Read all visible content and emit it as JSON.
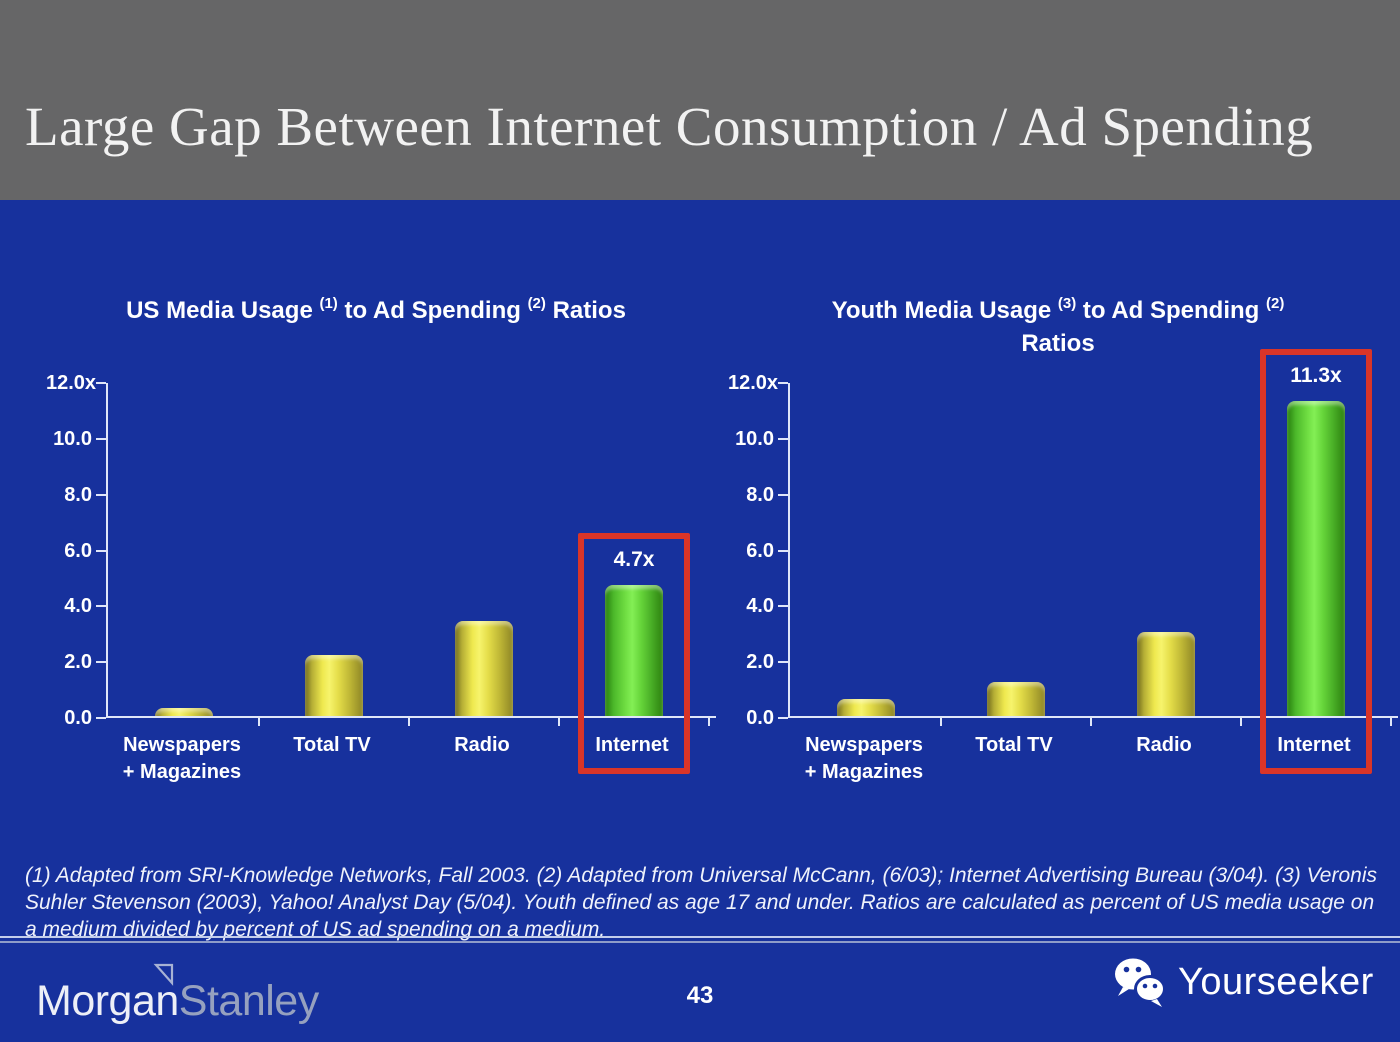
{
  "slide": {
    "header": {
      "title": "Large Gap Between Internet Consumption / Ad Spending"
    },
    "footnote": "(1) Adapted from SRI-Knowledge Networks, Fall 2003.  (2) Adapted from Universal McCann, (6/03); Internet Advertising Bureau (3/04). (3) Veronis Suhler Stevenson (2003), Yahoo! Analyst Day (5/04).  Youth defined as age 17 and under.  Ratios are calculated as percent of US media usage on a medium divided by percent of US ad spending on a medium.",
    "footer": {
      "brand_morgan": "Morgan",
      "brand_stanley": "Stanley",
      "page_number": "43",
      "watermark": "Yourseeker"
    }
  },
  "chart_data": [
    {
      "type": "bar",
      "title": "US Media Usage (1) to Ad Spending (2) Ratios",
      "title_lines": [
        [
          {
            "text": "US Media Usage "
          },
          {
            "sup": "(1)"
          },
          {
            "text": " to Ad Spending "
          },
          {
            "sup": "(2)"
          },
          {
            "text": " Ratios"
          }
        ]
      ],
      "categories": [
        "Newspapers + Magazines",
        "Total TV",
        "Radio",
        "Internet"
      ],
      "category_lines": [
        [
          "Newspapers",
          "+ Magazines"
        ],
        [
          "Total TV"
        ],
        [
          "Radio"
        ],
        [
          "Internet"
        ]
      ],
      "values": [
        0.3,
        2.2,
        3.4,
        4.7
      ],
      "bar_colors": [
        "yellow",
        "yellow",
        "yellow",
        "green"
      ],
      "highlight_index": 3,
      "highlight_label": "4.7x",
      "yticks": [
        {
          "label": "12.0x",
          "value": 12
        },
        {
          "label": "10.0",
          "value": 10
        },
        {
          "label": "8.0",
          "value": 8
        },
        {
          "label": "6.0",
          "value": 6
        },
        {
          "label": "4.0",
          "value": 4
        },
        {
          "label": "2.0",
          "value": 2
        },
        {
          "label": "0.0",
          "value": 0
        }
      ],
      "ylim": [
        0,
        12
      ],
      "grid": false,
      "legend": false
    },
    {
      "type": "bar",
      "title": "Youth Media Usage (3) to Ad Spending (2) Ratios",
      "title_lines": [
        [
          {
            "text": "Youth Media Usage "
          },
          {
            "sup": "(3)"
          },
          {
            "text": " to Ad Spending "
          },
          {
            "sup": "(2)"
          }
        ],
        [
          {
            "text": "Ratios"
          }
        ]
      ],
      "categories": [
        "Newspapers + Magazines",
        "Total TV",
        "Radio",
        "Internet"
      ],
      "category_lines": [
        [
          "Newspapers",
          "+ Magazines"
        ],
        [
          "Total TV"
        ],
        [
          "Radio"
        ],
        [
          "Internet"
        ]
      ],
      "values": [
        0.6,
        1.2,
        3.0,
        11.3
      ],
      "bar_colors": [
        "yellow",
        "yellow",
        "yellow",
        "green"
      ],
      "highlight_index": 3,
      "highlight_label": "11.3x",
      "yticks": [
        {
          "label": "12.0x",
          "value": 12
        },
        {
          "label": "10.0",
          "value": 10
        },
        {
          "label": "8.0",
          "value": 8
        },
        {
          "label": "6.0",
          "value": 6
        },
        {
          "label": "4.0",
          "value": 4
        },
        {
          "label": "2.0",
          "value": 2
        },
        {
          "label": "0.0",
          "value": 0
        }
      ],
      "ylim": [
        0,
        12
      ],
      "grid": false,
      "legend": false
    }
  ],
  "colors": {
    "background_blue": "#17319D",
    "header_gray": "#666667",
    "bar_yellow": "#EDE84F",
    "bar_green": "#5FD235",
    "highlight_red": "#D93528",
    "axis_line": "#DFE6F8"
  }
}
